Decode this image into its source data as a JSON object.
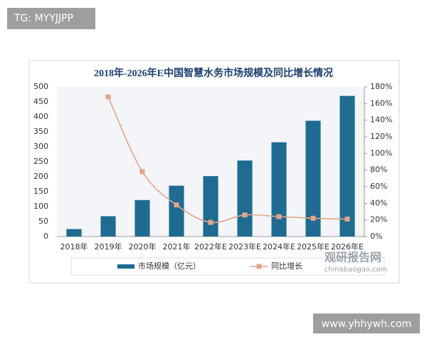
{
  "badge_top": "TG: MYYJJPP",
  "badge_bottom": "www.yhhywh.com",
  "watermark": {
    "title": "观研报告网",
    "url": "chinabaogao.com"
  },
  "chart_data": {
    "type": "bar-line",
    "title": "2018年-2026年E中国智慧水务市场规模及同比增长情况",
    "categories": [
      "2018年",
      "2019年",
      "2020年",
      "2021年",
      "2022年E",
      "2023年E",
      "2024年E",
      "2025年E",
      "2026年E"
    ],
    "series": [
      {
        "name": "市场规模（亿元）",
        "type": "bar",
        "color": "#1f6b91",
        "values": [
          25,
          68,
          122,
          170,
          202,
          254,
          315,
          387,
          470
        ]
      },
      {
        "name": "同比增长",
        "type": "line",
        "axis": "y2",
        "color": "#e2a58c",
        "values": [
          null,
          168,
          78,
          38,
          17,
          26,
          24,
          22,
          21
        ]
      }
    ],
    "ylim": [
      0,
      500
    ],
    "yticks": [
      0,
      50,
      100,
      150,
      200,
      250,
      300,
      350,
      400,
      450,
      500
    ],
    "y2lim": [
      0,
      180
    ],
    "y2ticks": [
      {
        "value": 0,
        "label": "0%"
      },
      {
        "value": 20,
        "label": "20%"
      },
      {
        "value": 40,
        "label": "40%"
      },
      {
        "value": 60,
        "label": "60%"
      },
      {
        "value": 80,
        "label": "80%"
      },
      {
        "value": 100,
        "label": "100%"
      },
      {
        "value": 120,
        "label": "120%"
      },
      {
        "value": 140,
        "label": "140%"
      },
      {
        "value": 160,
        "label": "160%"
      },
      {
        "value": 180,
        "label": "180%"
      }
    ],
    "grid": false,
    "legend": "bottom"
  }
}
